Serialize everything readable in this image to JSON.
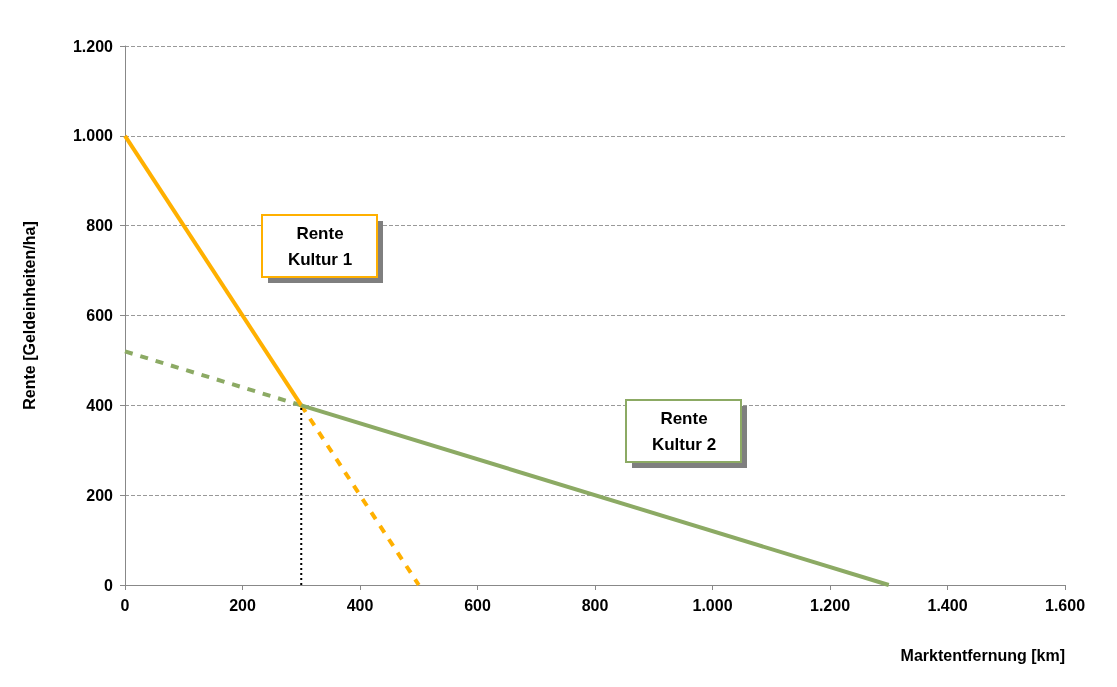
{
  "chart_data": {
    "type": "line",
    "xlabel": "Marktentfernung [km]",
    "ylabel": "Rente [Geldeinheiten/ha]",
    "xlim": [
      0,
      1600
    ],
    "xticks": [
      0,
      200,
      400,
      600,
      800,
      {
        "value": 1000,
        "label": "1.000"
      },
      {
        "value": 1200,
        "label": "1.200"
      },
      {
        "value": 1400,
        "label": "1.400"
      },
      {
        "value": 1600,
        "label": "1.600"
      }
    ],
    "ylim": [
      0,
      1200
    ],
    "yticks": [
      0,
      200,
      400,
      600,
      800,
      {
        "value": 1000,
        "label": "1.000"
      },
      {
        "value": 1200,
        "label": "1.200"
      }
    ],
    "grid": "y",
    "marker": "none",
    "series": [
      {
        "color": "#ffb000",
        "x": [
          0,
          300
        ],
        "values": [
          1000,
          400
        ],
        "line_style": "solid"
      },
      {
        "color": "#8caa64",
        "x": [
          300,
          1300
        ],
        "values": [
          400,
          0
        ],
        "line_style": "solid"
      },
      {
        "color": "#ffb000",
        "x": [
          300,
          500
        ],
        "values": [
          400,
          0
        ],
        "line_style": "dashed"
      },
      {
        "color": "#8caa64",
        "x": [
          0,
          300
        ],
        "values": [
          520,
          400
        ],
        "line_style": "dashed"
      },
      {
        "color": "#000000",
        "x": [
          300,
          300
        ],
        "values": [
          0,
          400
        ],
        "line_style": "dotted"
      }
    ],
    "annotations": [
      "Rente\nKultur 1",
      "Rente\nKultur 2"
    ]
  }
}
